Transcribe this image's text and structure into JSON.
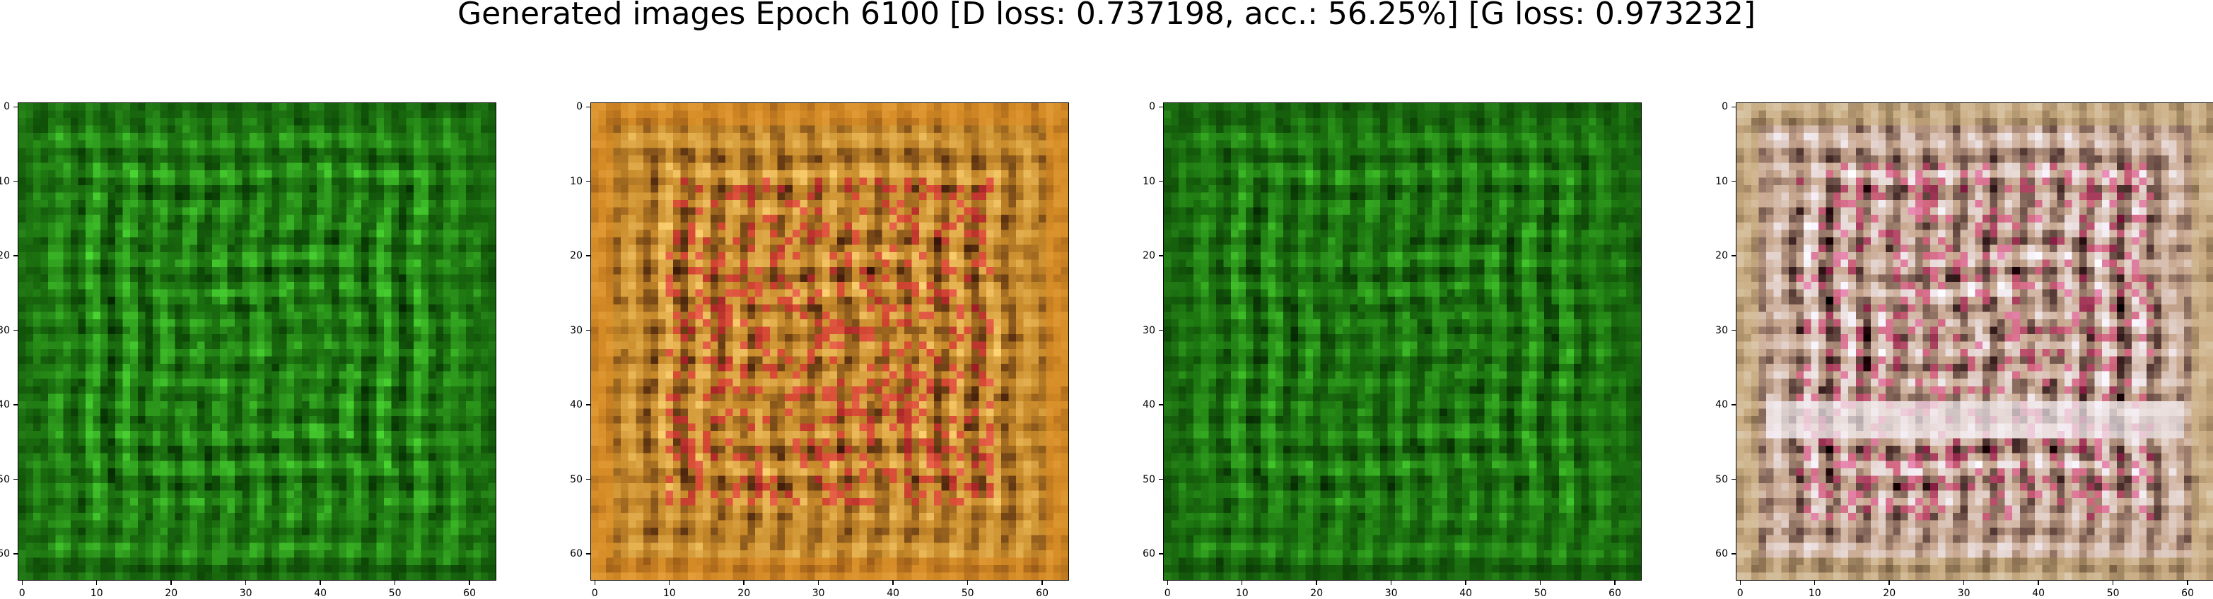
{
  "figure": {
    "title": "Generated images Epoch 6100 [D loss: 0.737198, acc.: 56.25%] [G loss: 0.973232]"
  },
  "chart_data": [
    {
      "type": "heatmap",
      "image_kind": "generated RGB image",
      "size": [
        64,
        64
      ],
      "xlim": [
        -0.5,
        63.5
      ],
      "ylim": [
        63.5,
        -0.5
      ],
      "xticks": [
        0,
        10,
        20,
        30,
        40,
        50,
        60
      ],
      "yticks": [
        0,
        10,
        20,
        30,
        40,
        50,
        60
      ],
      "palette": {
        "base": "#1f7a12",
        "dark": "#0a3d05",
        "light": "#3fbf2a"
      },
      "pattern": "green"
    },
    {
      "type": "heatmap",
      "image_kind": "generated RGB image",
      "size": [
        64,
        64
      ],
      "xlim": [
        -0.5,
        63.5
      ],
      "ylim": [
        63.5,
        -0.5
      ],
      "xticks": [
        0,
        10,
        20,
        30,
        40,
        50,
        60
      ],
      "yticks": [
        0,
        10,
        20,
        30,
        40,
        50,
        60
      ],
      "palette": {
        "base": "#c88a2a",
        "dark": "#5a3010",
        "light": "#f0c060",
        "accent": "#e0203a"
      },
      "pattern": "orange"
    },
    {
      "type": "heatmap",
      "image_kind": "generated RGB image",
      "size": [
        64,
        64
      ],
      "xlim": [
        -0.5,
        63.5
      ],
      "ylim": [
        63.5,
        -0.5
      ],
      "xticks": [
        0,
        10,
        20,
        30,
        40,
        50,
        60
      ],
      "yticks": [
        0,
        10,
        20,
        30,
        40,
        50,
        60
      ],
      "palette": {
        "base": "#1c7410",
        "dark": "#0b3a06",
        "light": "#38b024"
      },
      "pattern": "green"
    },
    {
      "type": "heatmap",
      "image_kind": "generated RGB image",
      "size": [
        64,
        64
      ],
      "xlim": [
        -0.5,
        63.5
      ],
      "ylim": [
        63.5,
        -0.5
      ],
      "xticks": [
        0,
        10,
        20,
        30,
        40,
        50,
        60
      ],
      "yticks": [
        0,
        10,
        20,
        30,
        40,
        50,
        60
      ],
      "palette": {
        "base": "#c9a890",
        "dark": "#3a2020",
        "light": "#f4eef4",
        "accent": "#d83070"
      },
      "pattern": "pastel"
    }
  ]
}
